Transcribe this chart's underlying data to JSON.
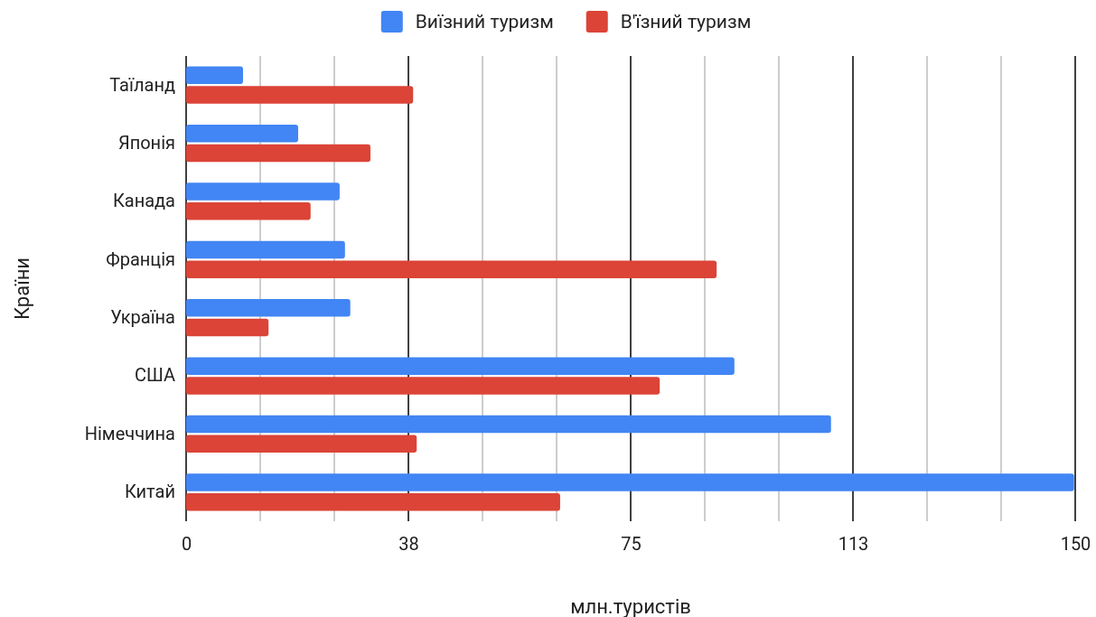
{
  "chart_data": {
    "type": "bar",
    "orientation": "horizontal",
    "xlabel": "млн.туристів",
    "ylabel": "Країни",
    "categories": [
      "Таїланд",
      "Японія",
      "Канада",
      "Франція",
      "Україна",
      "США",
      "Німеччина",
      "Китай"
    ],
    "series": [
      {
        "name": "Виїзний туризм",
        "color": "#4285f4",
        "values": [
          9.6,
          18.9,
          25.9,
          26.8,
          27.7,
          92.5,
          108.8,
          149.8
        ]
      },
      {
        "name": "В'їзний туризм",
        "color": "#db4437",
        "values": [
          38.3,
          31.1,
          21.0,
          89.5,
          13.9,
          79.9,
          38.9,
          63.1
        ]
      }
    ],
    "xlim": [
      0,
      150
    ],
    "xticks": [
      0,
      {
        "value": 12.5,
        "label": null
      },
      {
        "value": 25,
        "label": null
      },
      {
        "value": 37.5,
        "label": "38"
      },
      {
        "value": 50,
        "label": null
      },
      {
        "value": 62.5,
        "label": null
      },
      75,
      {
        "value": 87.5,
        "label": null
      },
      {
        "value": 100,
        "label": null
      },
      {
        "value": 112.5,
        "label": "113"
      },
      {
        "value": 125,
        "label": null
      },
      {
        "value": 137.5,
        "label": null
      },
      150
    ],
    "grid": "x",
    "legend": "top"
  }
}
